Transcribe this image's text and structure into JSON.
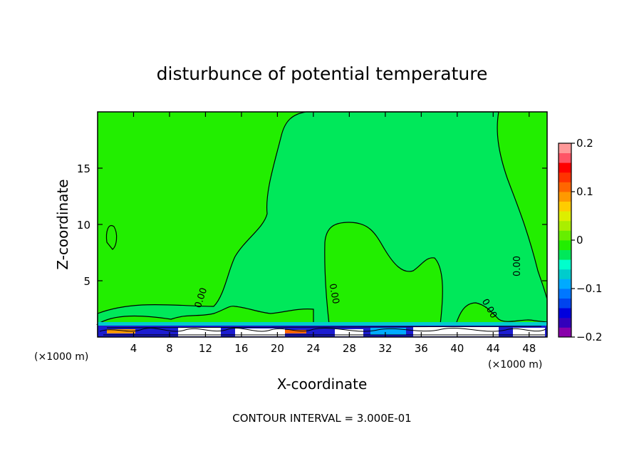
{
  "chart_data": {
    "type": "heatmap",
    "title": "disturbunce of potential temperature",
    "xlabel": "X-coordinate",
    "ylabel": "Z-coordinate",
    "x_unit_left": "(×1000 m)",
    "x_unit_right": "(×1000 m)",
    "xlim": [
      0,
      50
    ],
    "ylim": [
      0,
      20
    ],
    "x_ticks": [
      4,
      8,
      12,
      16,
      20,
      24,
      28,
      32,
      36,
      40,
      44,
      48
    ],
    "y_ticks": [
      5,
      10,
      15
    ],
    "colorbar": {
      "min": -0.2,
      "max": 0.2,
      "tick_values": [
        0.2,
        0.1,
        0,
        -0.1,
        -0.2
      ],
      "tick_labels": [
        "0.2",
        "0.1",
        "0",
        "−0.1",
        "−0.2"
      ],
      "colors": [
        "#8800aa",
        "#3300bb",
        "#0000dd",
        "#0044ee",
        "#0077ff",
        "#00aaff",
        "#00cccc",
        "#00ffcc",
        "#00e85a",
        "#22ee00",
        "#66ee00",
        "#aaee00",
        "#ddee00",
        "#ffcc00",
        "#ff9900",
        "#ff6600",
        "#ff3300",
        "#ff0000",
        "#ff5566",
        "#ff9999"
      ]
    },
    "background_value": 0.02,
    "contour_labels": [
      {
        "text": "0.00",
        "x": 11.8,
        "y": 3.4,
        "angle": -72
      },
      {
        "text": "0.00",
        "x": 26.0,
        "y": 3.8,
        "angle": 80
      },
      {
        "text": "0.00",
        "x": 47.0,
        "y": 6.3,
        "angle": -90
      },
      {
        "text": "0.00",
        "x": 43.3,
        "y": 2.4,
        "angle": 60
      }
    ],
    "contour_interval_label": "CONTOUR INTERVAL = 3.000E-01"
  }
}
